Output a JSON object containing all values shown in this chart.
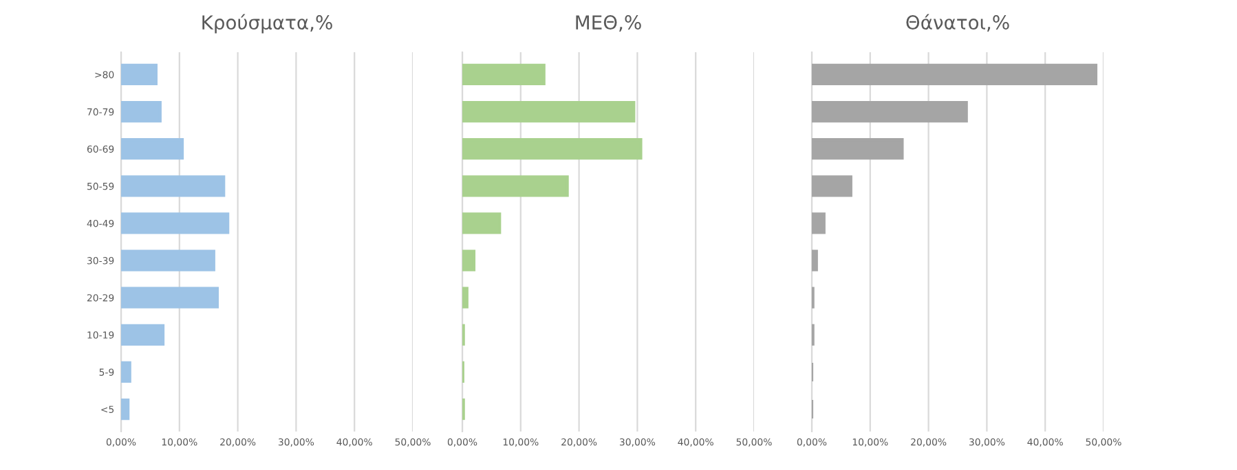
{
  "chart_data": [
    {
      "type": "bar",
      "orientation": "horizontal",
      "title": "Κρούσματα,%",
      "categories": [
        ">80",
        "70-79",
        "60-69",
        "50-59",
        "40-49",
        "30-39",
        "20-29",
        "10-19",
        "5-9",
        "<5"
      ],
      "series": [
        {
          "color": "#9dc3e6",
          "values": [
            6.0,
            6.7,
            10.5,
            17.6,
            18.3,
            15.9,
            16.5,
            7.2,
            1.5,
            1.2
          ]
        }
      ],
      "xlim": [
        0,
        50
      ],
      "xticks": [
        {
          "value": 0,
          "label": "0,00%"
        },
        {
          "value": 10,
          "label": "10,00%"
        },
        {
          "value": 20,
          "label": "20,00%"
        },
        {
          "value": 30,
          "label": "30,00%"
        },
        {
          "value": 40,
          "label": "40,00%"
        },
        {
          "value": 50,
          "label": "50,00%"
        }
      ],
      "grid": "x"
    },
    {
      "type": "bar",
      "orientation": "horizontal",
      "title": "ΜΕΘ,%",
      "categories": [
        null,
        null,
        null,
        null,
        null,
        null,
        null,
        null,
        null,
        null
      ],
      "series": [
        {
          "color": "#a9d18e",
          "values": [
            14.0,
            29.4,
            30.6,
            18.0,
            6.4,
            2.0,
            0.8,
            0.2,
            0.1,
            0.2
          ]
        }
      ],
      "xlim": [
        0,
        50
      ],
      "xticks": [
        {
          "value": 0,
          "label": "0,00%"
        },
        {
          "value": 10,
          "label": "10,00%"
        },
        {
          "value": 20,
          "label": "20,00%"
        },
        {
          "value": 30,
          "label": "30,00%"
        },
        {
          "value": 40,
          "label": "40,00%"
        },
        {
          "value": 50,
          "label": "50,00%"
        }
      ],
      "grid": "x"
    },
    {
      "type": "bar",
      "orientation": "horizontal",
      "title": "Θάνατοι,%",
      "categories": [
        null,
        null,
        null,
        null,
        null,
        null,
        null,
        null,
        null,
        null
      ],
      "series": [
        {
          "color": "#a5a5a5",
          "values": [
            48.7,
            26.5,
            15.5,
            6.7,
            2.1,
            0.8,
            0.2,
            0.2,
            0.0,
            0.0
          ]
        }
      ],
      "xlim": [
        0,
        50
      ],
      "xticks": [
        {
          "value": 0,
          "label": "0,00%"
        },
        {
          "value": 10,
          "label": "10,00%"
        },
        {
          "value": 20,
          "label": "20,00%"
        },
        {
          "value": 30,
          "label": "30,00%"
        },
        {
          "value": 40,
          "label": "40,00%"
        },
        {
          "value": 50,
          "label": "50,00%"
        }
      ],
      "grid": "x"
    }
  ]
}
